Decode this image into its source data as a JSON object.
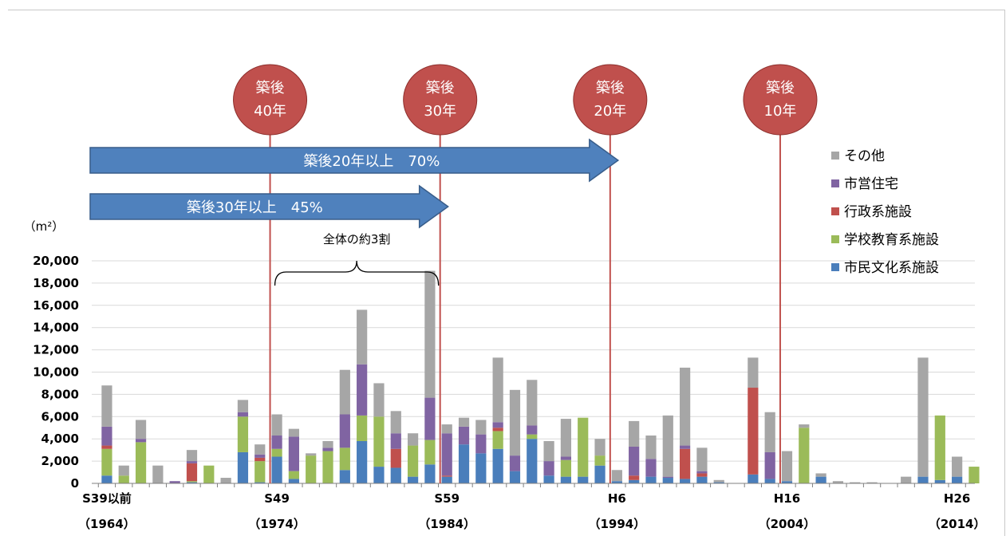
{
  "chart_data": {
    "type": "bar",
    "stacked": true,
    "y_unit": "（m²）",
    "ylim": [
      0,
      20000
    ],
    "yticks": [
      "0",
      "2,000",
      "4,000",
      "6,000",
      "8,000",
      "10,000",
      "12,000",
      "14,000",
      "16,000",
      "18,000",
      "20,000"
    ],
    "grid": true,
    "legend_position": "right",
    "x_labels": [
      {
        "index": 0,
        "line1": "S39以前",
        "line2": "（1964）"
      },
      {
        "index": 10,
        "line1": "S49",
        "line2": "（1974）"
      },
      {
        "index": 20,
        "line1": "S59",
        "line2": "（1984）"
      },
      {
        "index": 30,
        "line1": "H6",
        "line2": "（1994）"
      },
      {
        "index": 40,
        "line1": "H16",
        "line2": "（2004）"
      },
      {
        "index": 50,
        "line1": "H26",
        "line2": "（2014）"
      }
    ],
    "series": [
      {
        "name": "市民文化系施設",
        "color": "#4a7ebb",
        "values": [
          700,
          0,
          0,
          0,
          0,
          100,
          0,
          0,
          2800,
          100,
          2400,
          400,
          0,
          0,
          1200,
          3800,
          1500,
          1400,
          600,
          1700,
          600,
          3500,
          2700,
          3100,
          1100,
          4000,
          700,
          600,
          600,
          1600,
          200,
          300,
          600,
          500,
          400,
          600,
          100,
          0,
          800,
          400,
          200,
          0,
          600,
          0,
          0,
          0,
          0,
          0,
          600,
          300,
          600,
          0
        ]
      },
      {
        "name": "学校教育系施設",
        "color": "#9bbb59",
        "values": [
          2400,
          700,
          3700,
          0,
          0,
          100,
          1600,
          0,
          3200,
          1900,
          700,
          700,
          2500,
          2900,
          2000,
          2300,
          4500,
          0,
          2800,
          2200,
          0,
          0,
          0,
          1600,
          0,
          400,
          0,
          1500,
          5300,
          900,
          0,
          0,
          0,
          0,
          0,
          0,
          0,
          0,
          0,
          0,
          0,
          5000,
          0,
          0,
          0,
          0,
          0,
          0,
          0,
          5800,
          0,
          1500
        ]
      },
      {
        "name": "行政系施設",
        "color": "#c0504d",
        "values": [
          300,
          0,
          0,
          0,
          0,
          1600,
          0,
          0,
          0,
          300,
          0,
          0,
          0,
          0,
          0,
          0,
          0,
          1700,
          0,
          0,
          100,
          0,
          0,
          300,
          0,
          0,
          0,
          0,
          0,
          0,
          0,
          400,
          0,
          0,
          2700,
          300,
          0,
          0,
          7800,
          0,
          0,
          0,
          0,
          0,
          0,
          0,
          0,
          0,
          0,
          0,
          0,
          0
        ]
      },
      {
        "name": "市営住宅",
        "color": "#8064a2",
        "values": [
          1700,
          0,
          300,
          0,
          200,
          200,
          0,
          0,
          400,
          300,
          1200,
          3100,
          0,
          300,
          3000,
          4600,
          0,
          1400,
          0,
          3800,
          3800,
          1600,
          1700,
          500,
          1400,
          800,
          1300,
          300,
          0,
          0,
          0,
          2600,
          1600,
          100,
          300,
          200,
          0,
          0,
          0,
          2400,
          0,
          0,
          0,
          0,
          0,
          0,
          0,
          0,
          0,
          0,
          0,
          0
        ]
      },
      {
        "name": "その他",
        "color": "#a6a6a6",
        "values": [
          3700,
          900,
          1700,
          1600,
          0,
          1000,
          0,
          500,
          1100,
          900,
          1900,
          700,
          200,
          600,
          4000,
          4900,
          3000,
          2000,
          1100,
          11400,
          800,
          800,
          1300,
          5800,
          5900,
          4100,
          1800,
          3400,
          0,
          1500,
          1000,
          2300,
          2100,
          5500,
          7000,
          2100,
          200,
          0,
          2700,
          3600,
          2700,
          300,
          300,
          200,
          100,
          100,
          0,
          600,
          10700,
          0,
          1800,
          0
        ]
      },
      {
        "name": "その他",
        "color": "#a6a6a6",
        "values": []
      }
    ],
    "annotations": {
      "bubbles": [
        {
          "line1": "築後",
          "line2": "40年",
          "at_index": 10
        },
        {
          "line1": "築後",
          "line2": "30年",
          "at_index": 20
        },
        {
          "line1": "築後",
          "line2": "20年",
          "at_index": 30
        },
        {
          "line1": "築後",
          "line2": "10年",
          "at_index": 40
        }
      ],
      "arrows": [
        {
          "label": "築後20年以上　70%",
          "to_index": 30
        },
        {
          "label": "築後30年以上　45%",
          "to_index": 20
        }
      ],
      "brace": {
        "label": "全体の約3割",
        "from_index": 10,
        "to_index": 20
      }
    },
    "colors": {
      "bubble": "#c0504d",
      "arrow": "#4f81bd",
      "marker_line": "#c0504d"
    }
  }
}
